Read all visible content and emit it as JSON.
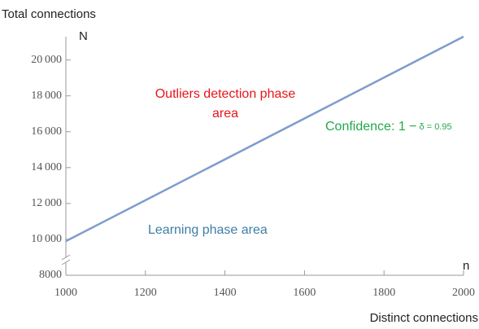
{
  "chart_data": {
    "type": "line",
    "y_axis_label": "Total connections",
    "y_axis_symbol": "N",
    "x_axis_label": "Distinct connections",
    "x_axis_symbol": "n",
    "annotations": {
      "outliers": [
        "Outliers detection phase",
        "area"
      ],
      "confidence": [
        "Confidence: 1 −",
        "δ = 0.95"
      ],
      "learning": "Learning phase area"
    },
    "annotation_colors": {
      "outliers": "#e8141a",
      "confidence": "#22a84c",
      "learning": "#3d7ea6"
    },
    "x": [
      1000,
      2000
    ],
    "series": [
      {
        "color": "#7e9dcc",
        "values": [
          9900,
          21300
        ]
      }
    ],
    "xlim": [
      1000,
      2000
    ],
    "xticks": [
      1000,
      1200,
      1400,
      1600,
      1800,
      2000
    ],
    "ylim": [
      8000,
      21300
    ],
    "yticks": [
      8000,
      {
        "value": 10000,
        "label": "10 000"
      },
      {
        "value": 12000,
        "label": "12 000"
      },
      {
        "value": 14000,
        "label": "14 000"
      },
      {
        "value": 16000,
        "label": "16 000"
      },
      {
        "value": 18000,
        "label": "18 000"
      },
      {
        "value": 20000,
        "label": "20 000"
      }
    ],
    "y_axis_break": true
  }
}
